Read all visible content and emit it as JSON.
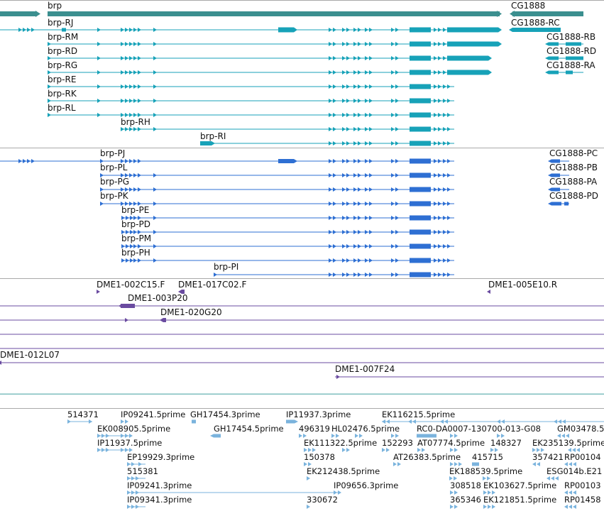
{
  "colors": {
    "gene": "#3b8f8f",
    "transcript_a": "#17a2b8",
    "transcript_b": "#2e6fd3",
    "clone": "#6a4ba0",
    "est": "#7ab3dd",
    "separator": "#a9a9a9"
  },
  "genes": [
    {
      "id": "brp",
      "label": "brp"
    },
    {
      "id": "cg1888",
      "label": "CG1888"
    }
  ],
  "transcripts_a": [
    {
      "label": "brp-RJ"
    },
    {
      "label": "brp-RM"
    },
    {
      "label": "brp-RD"
    },
    {
      "label": "brp-RG"
    },
    {
      "label": "brp-RE"
    },
    {
      "label": "brp-RK"
    },
    {
      "label": "brp-RL"
    },
    {
      "label": "brp-RH"
    },
    {
      "label": "brp-RI"
    },
    {
      "label": "CG1888-RC"
    },
    {
      "label": "CG1888-RB"
    },
    {
      "label": "CG1888-RD"
    },
    {
      "label": "CG1888-RA"
    }
  ],
  "transcripts_b": [
    {
      "label": "brp-PJ"
    },
    {
      "label": "brp-PL"
    },
    {
      "label": "brp-PG"
    },
    {
      "label": "brp-PK"
    },
    {
      "label": "brp-PE"
    },
    {
      "label": "brp-PD"
    },
    {
      "label": "brp-PM"
    },
    {
      "label": "brp-PH"
    },
    {
      "label": "brp-PI"
    },
    {
      "label": "CG1888-PC"
    },
    {
      "label": "CG1888-PB"
    },
    {
      "label": "CG1888-PA"
    },
    {
      "label": "CG1888-PD"
    }
  ],
  "clones": [
    {
      "label": "DME1-002C15.F"
    },
    {
      "label": "DME1-017C02.F"
    },
    {
      "label": "DME1-005E10.R"
    },
    {
      "label": "DME1-003P20"
    },
    {
      "label": "DME1-020G20"
    },
    {
      "label": "DME1-012L07"
    },
    {
      "label": "DME1-007F24"
    }
  ],
  "ests": [
    {
      "label": "514371"
    },
    {
      "label": "IP09241.5prime"
    },
    {
      "label": "GH17454.3prime"
    },
    {
      "label": "IP11937.3prime"
    },
    {
      "label": "EK116215.5prime"
    },
    {
      "label": "EK008905.5prime"
    },
    {
      "label": "GH17454.5prime"
    },
    {
      "label": "496319"
    },
    {
      "label": "HL02476.5prime"
    },
    {
      "label": "RC0-DA0007-130700-013-G08"
    },
    {
      "label": "GM03478.5"
    },
    {
      "label": "IP11937.5prime"
    },
    {
      "label": "EK111322.5prime"
    },
    {
      "label": "152293"
    },
    {
      "label": "AT07774.5prime"
    },
    {
      "label": "148327"
    },
    {
      "label": "EK235139.5prime"
    },
    {
      "label": "EP19929.3prime"
    },
    {
      "label": "150378"
    },
    {
      "label": "AT26383.5prime"
    },
    {
      "label": "415715"
    },
    {
      "label": "357421"
    },
    {
      "label": "RP00104"
    },
    {
      "label": "515381"
    },
    {
      "label": "EK212438.5prime"
    },
    {
      "label": "EK188539.5prime"
    },
    {
      "label": "ESG014b.E21"
    },
    {
      "label": "IP09241.3prime"
    },
    {
      "label": "IP09656.3prime"
    },
    {
      "label": "308518"
    },
    {
      "label": "EK103627.5prime"
    },
    {
      "label": "RP00103"
    },
    {
      "label": "IP09341.3prime"
    },
    {
      "label": "330672"
    },
    {
      "label": "365346"
    },
    {
      "label": "EK121851.5prime"
    },
    {
      "label": "RP01458"
    }
  ]
}
